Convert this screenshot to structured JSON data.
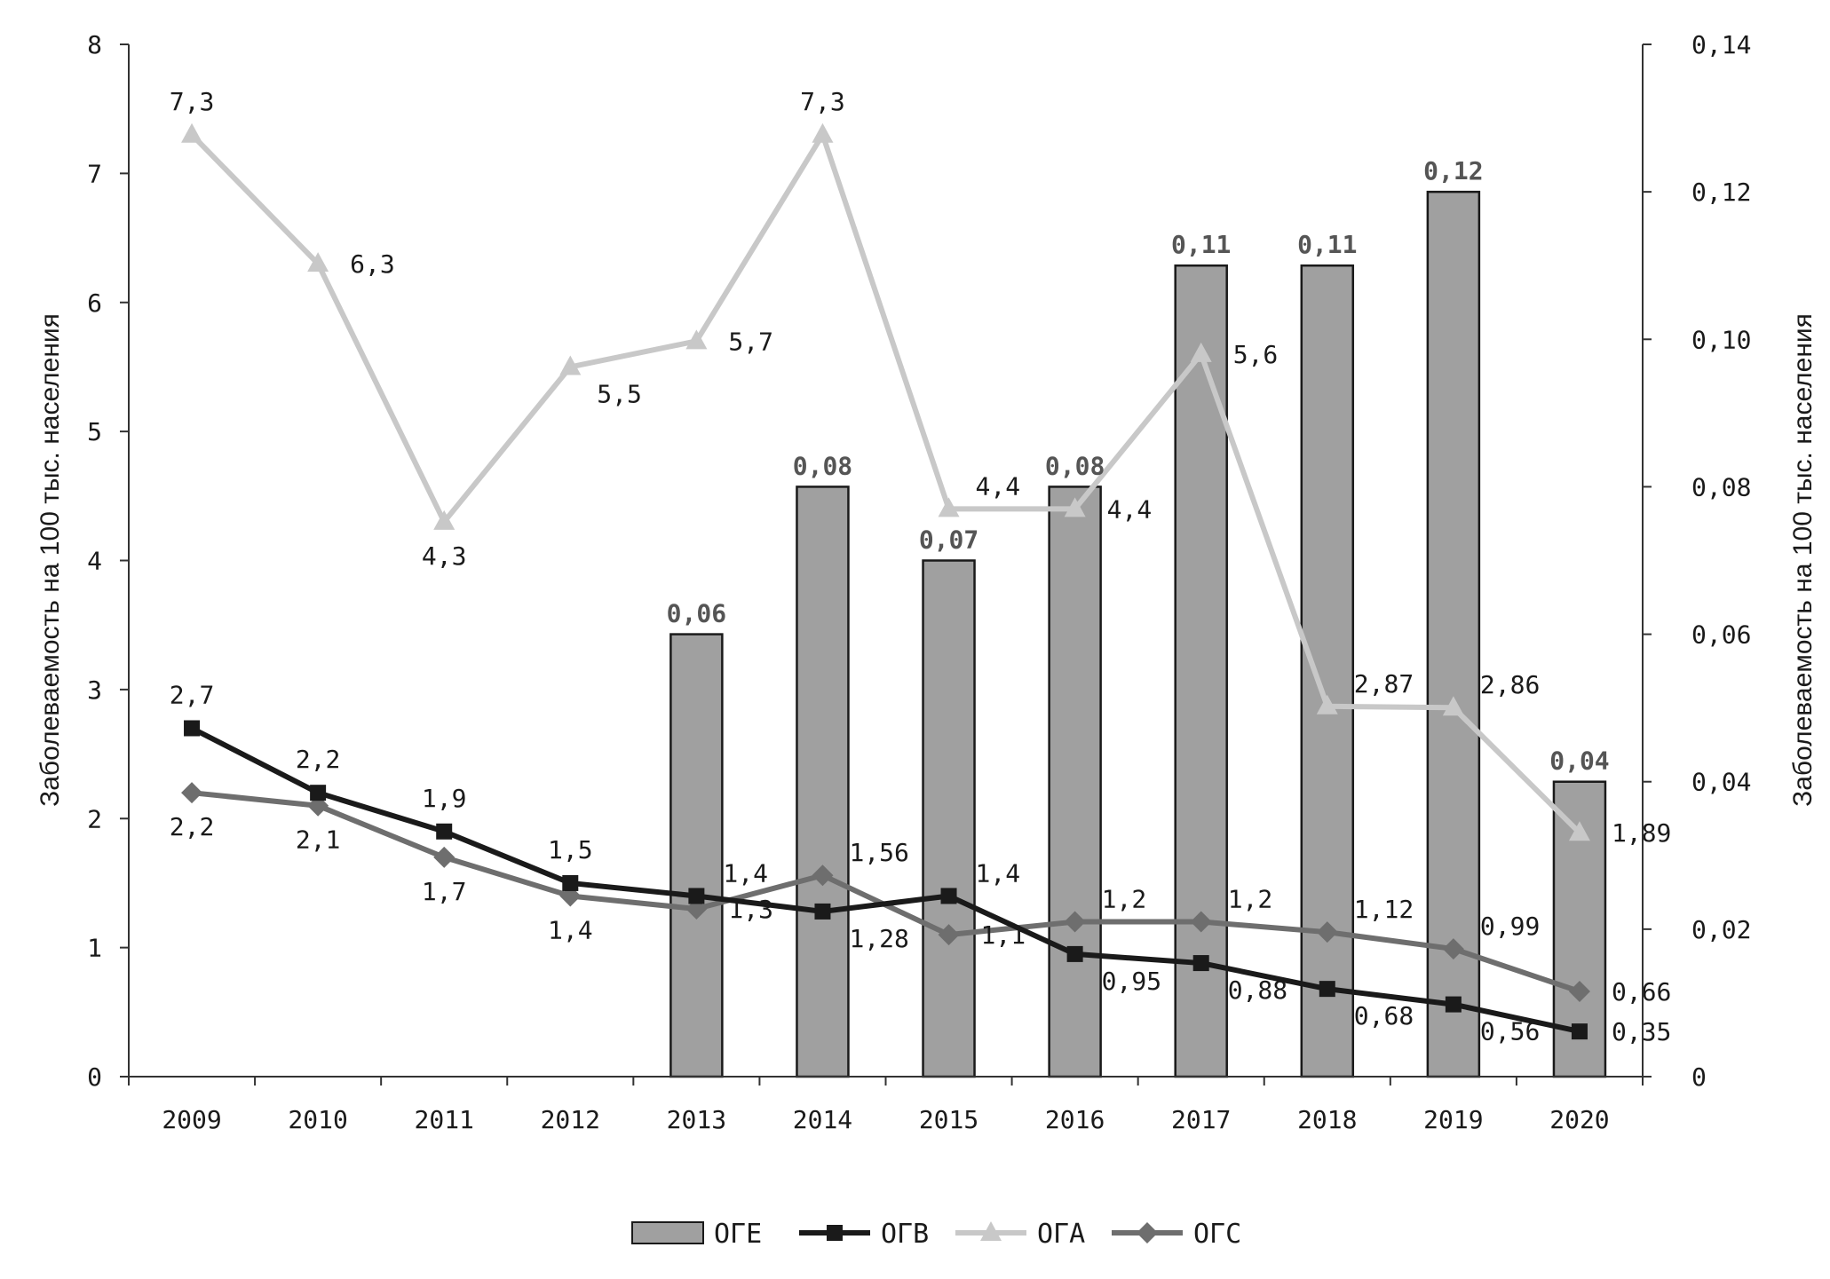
{
  "chart_data": {
    "type": "bar",
    "title": "",
    "categories": [
      "2009",
      "2010",
      "2011",
      "2012",
      "2013",
      "2014",
      "2015",
      "2016",
      "2017",
      "2018",
      "2019",
      "2020"
    ],
    "ylabel_left": "Заболеваемость на 100 тыс. населения",
    "ylabel_right": "Заболеваемость на 100 тыс. населения",
    "ylim_left": [
      0,
      8
    ],
    "ylim_right": [
      0,
      0.14
    ],
    "left_ticks": [
      "0",
      "1",
      "2",
      "3",
      "4",
      "5",
      "6",
      "7",
      "8"
    ],
    "right_ticks": [
      "0",
      "0,02",
      "0,04",
      "0,06",
      "0,08",
      "0,10",
      "0,12",
      "0,14"
    ],
    "series": [
      {
        "name": "ОГЕ",
        "kind": "bar",
        "axis": "right",
        "color": "#a0a0a0",
        "values": [
          null,
          null,
          null,
          null,
          0.06,
          0.08,
          0.07,
          0.08,
          0.11,
          0.11,
          0.12,
          0.04
        ],
        "labels": [
          "",
          "",
          "",
          "",
          "0,06",
          "0,08",
          "0,07",
          "0,08",
          "0,11",
          "0,11",
          "0,12",
          "0,04"
        ]
      },
      {
        "name": "ОГВ",
        "kind": "line",
        "marker": "square",
        "axis": "left",
        "color": "#1a1a1a",
        "values": [
          2.7,
          2.2,
          1.9,
          1.5,
          1.4,
          1.28,
          1.4,
          0.95,
          0.88,
          0.68,
          0.56,
          0.35
        ],
        "labels": [
          "2,7",
          "2,2",
          "1,9",
          "1,5",
          "1,4",
          "1,28",
          "1,4",
          "0,95",
          "0,88",
          "0,68",
          "0,56",
          "0,35"
        ],
        "label_pos": [
          "above",
          "above",
          "above",
          "above",
          "right-up",
          "below-right",
          "right-up",
          "below-right",
          "below-right",
          "below-right",
          "below-right",
          "right"
        ]
      },
      {
        "name": "ОГА",
        "kind": "line",
        "marker": "triangle",
        "axis": "left",
        "color": "#c8c8c8",
        "values": [
          7.3,
          6.3,
          4.3,
          5.5,
          5.7,
          7.3,
          4.4,
          4.4,
          5.6,
          2.87,
          2.86,
          1.89
        ],
        "labels": [
          "7,3",
          "6,3",
          "4,3",
          "5,5",
          "5,7",
          "7,3",
          "4,4",
          "4,4",
          "5,6",
          "2,87",
          "2,86",
          "1,89"
        ],
        "label_pos": [
          "above",
          "right",
          "below",
          "below-right",
          "right",
          "above",
          "right-up",
          "right",
          "right",
          "right-up",
          "right-up",
          "right"
        ]
      },
      {
        "name": "ОГС",
        "kind": "line",
        "marker": "diamond",
        "axis": "left",
        "color": "#6e6e6e",
        "values": [
          2.2,
          2.1,
          1.7,
          1.4,
          1.3,
          1.56,
          1.1,
          1.2,
          1.2,
          1.12,
          0.99,
          0.66
        ],
        "labels": [
          "2,2",
          "2,1",
          "1,7",
          "1,4",
          "1,3",
          "1,56",
          "1,1",
          "1,2",
          "1,2",
          "1,12",
          "0,99",
          "0,66"
        ],
        "label_pos": [
          "below",
          "below",
          "below",
          "below",
          "right",
          "right-up",
          "right",
          "right-up",
          "right-up",
          "right-up",
          "right-up",
          "right"
        ]
      }
    ],
    "legend_position": "bottom"
  }
}
